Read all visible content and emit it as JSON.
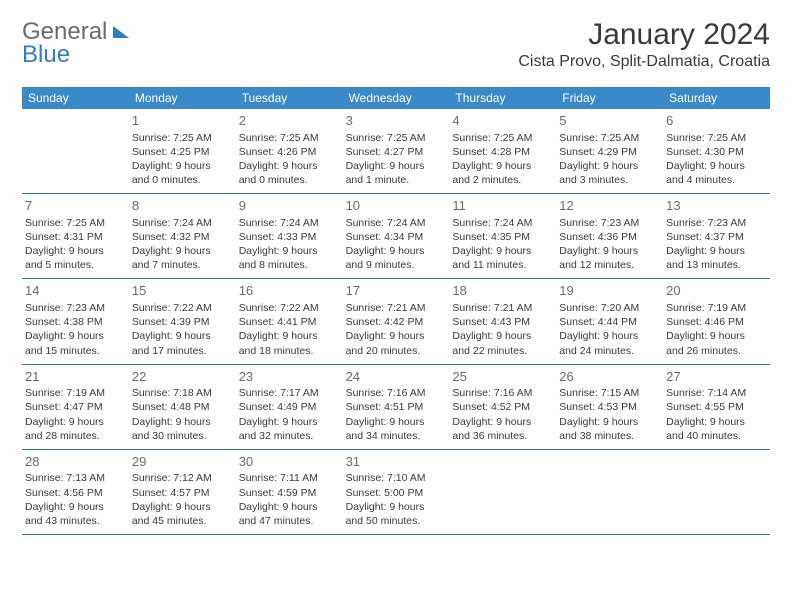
{
  "logo": {
    "gray": "General",
    "blue": "Blue"
  },
  "title": "January 2024",
  "location": "Cista Provo, Split-Dalmatia, Croatia",
  "header_bg": "#3a89c9",
  "divider_color": "#2f6fa3",
  "dow": [
    "Sunday",
    "Monday",
    "Tuesday",
    "Wednesday",
    "Thursday",
    "Friday",
    "Saturday"
  ],
  "weeks": [
    [
      {
        "n": "",
        "l1": "",
        "l2": "",
        "l3": "",
        "l4": ""
      },
      {
        "n": "1",
        "l1": "Sunrise: 7:25 AM",
        "l2": "Sunset: 4:25 PM",
        "l3": "Daylight: 9 hours",
        "l4": "and 0 minutes."
      },
      {
        "n": "2",
        "l1": "Sunrise: 7:25 AM",
        "l2": "Sunset: 4:26 PM",
        "l3": "Daylight: 9 hours",
        "l4": "and 0 minutes."
      },
      {
        "n": "3",
        "l1": "Sunrise: 7:25 AM",
        "l2": "Sunset: 4:27 PM",
        "l3": "Daylight: 9 hours",
        "l4": "and 1 minute."
      },
      {
        "n": "4",
        "l1": "Sunrise: 7:25 AM",
        "l2": "Sunset: 4:28 PM",
        "l3": "Daylight: 9 hours",
        "l4": "and 2 minutes."
      },
      {
        "n": "5",
        "l1": "Sunrise: 7:25 AM",
        "l2": "Sunset: 4:29 PM",
        "l3": "Daylight: 9 hours",
        "l4": "and 3 minutes."
      },
      {
        "n": "6",
        "l1": "Sunrise: 7:25 AM",
        "l2": "Sunset: 4:30 PM",
        "l3": "Daylight: 9 hours",
        "l4": "and 4 minutes."
      }
    ],
    [
      {
        "n": "7",
        "l1": "Sunrise: 7:25 AM",
        "l2": "Sunset: 4:31 PM",
        "l3": "Daylight: 9 hours",
        "l4": "and 5 minutes."
      },
      {
        "n": "8",
        "l1": "Sunrise: 7:24 AM",
        "l2": "Sunset: 4:32 PM",
        "l3": "Daylight: 9 hours",
        "l4": "and 7 minutes."
      },
      {
        "n": "9",
        "l1": "Sunrise: 7:24 AM",
        "l2": "Sunset: 4:33 PM",
        "l3": "Daylight: 9 hours",
        "l4": "and 8 minutes."
      },
      {
        "n": "10",
        "l1": "Sunrise: 7:24 AM",
        "l2": "Sunset: 4:34 PM",
        "l3": "Daylight: 9 hours",
        "l4": "and 9 minutes."
      },
      {
        "n": "11",
        "l1": "Sunrise: 7:24 AM",
        "l2": "Sunset: 4:35 PM",
        "l3": "Daylight: 9 hours",
        "l4": "and 11 minutes."
      },
      {
        "n": "12",
        "l1": "Sunrise: 7:23 AM",
        "l2": "Sunset: 4:36 PM",
        "l3": "Daylight: 9 hours",
        "l4": "and 12 minutes."
      },
      {
        "n": "13",
        "l1": "Sunrise: 7:23 AM",
        "l2": "Sunset: 4:37 PM",
        "l3": "Daylight: 9 hours",
        "l4": "and 13 minutes."
      }
    ],
    [
      {
        "n": "14",
        "l1": "Sunrise: 7:23 AM",
        "l2": "Sunset: 4:38 PM",
        "l3": "Daylight: 9 hours",
        "l4": "and 15 minutes."
      },
      {
        "n": "15",
        "l1": "Sunrise: 7:22 AM",
        "l2": "Sunset: 4:39 PM",
        "l3": "Daylight: 9 hours",
        "l4": "and 17 minutes."
      },
      {
        "n": "16",
        "l1": "Sunrise: 7:22 AM",
        "l2": "Sunset: 4:41 PM",
        "l3": "Daylight: 9 hours",
        "l4": "and 18 minutes."
      },
      {
        "n": "17",
        "l1": "Sunrise: 7:21 AM",
        "l2": "Sunset: 4:42 PM",
        "l3": "Daylight: 9 hours",
        "l4": "and 20 minutes."
      },
      {
        "n": "18",
        "l1": "Sunrise: 7:21 AM",
        "l2": "Sunset: 4:43 PM",
        "l3": "Daylight: 9 hours",
        "l4": "and 22 minutes."
      },
      {
        "n": "19",
        "l1": "Sunrise: 7:20 AM",
        "l2": "Sunset: 4:44 PM",
        "l3": "Daylight: 9 hours",
        "l4": "and 24 minutes."
      },
      {
        "n": "20",
        "l1": "Sunrise: 7:19 AM",
        "l2": "Sunset: 4:46 PM",
        "l3": "Daylight: 9 hours",
        "l4": "and 26 minutes."
      }
    ],
    [
      {
        "n": "21",
        "l1": "Sunrise: 7:19 AM",
        "l2": "Sunset: 4:47 PM",
        "l3": "Daylight: 9 hours",
        "l4": "and 28 minutes."
      },
      {
        "n": "22",
        "l1": "Sunrise: 7:18 AM",
        "l2": "Sunset: 4:48 PM",
        "l3": "Daylight: 9 hours",
        "l4": "and 30 minutes."
      },
      {
        "n": "23",
        "l1": "Sunrise: 7:17 AM",
        "l2": "Sunset: 4:49 PM",
        "l3": "Daylight: 9 hours",
        "l4": "and 32 minutes."
      },
      {
        "n": "24",
        "l1": "Sunrise: 7:16 AM",
        "l2": "Sunset: 4:51 PM",
        "l3": "Daylight: 9 hours",
        "l4": "and 34 minutes."
      },
      {
        "n": "25",
        "l1": "Sunrise: 7:16 AM",
        "l2": "Sunset: 4:52 PM",
        "l3": "Daylight: 9 hours",
        "l4": "and 36 minutes."
      },
      {
        "n": "26",
        "l1": "Sunrise: 7:15 AM",
        "l2": "Sunset: 4:53 PM",
        "l3": "Daylight: 9 hours",
        "l4": "and 38 minutes."
      },
      {
        "n": "27",
        "l1": "Sunrise: 7:14 AM",
        "l2": "Sunset: 4:55 PM",
        "l3": "Daylight: 9 hours",
        "l4": "and 40 minutes."
      }
    ],
    [
      {
        "n": "28",
        "l1": "Sunrise: 7:13 AM",
        "l2": "Sunset: 4:56 PM",
        "l3": "Daylight: 9 hours",
        "l4": "and 43 minutes."
      },
      {
        "n": "29",
        "l1": "Sunrise: 7:12 AM",
        "l2": "Sunset: 4:57 PM",
        "l3": "Daylight: 9 hours",
        "l4": "and 45 minutes."
      },
      {
        "n": "30",
        "l1": "Sunrise: 7:11 AM",
        "l2": "Sunset: 4:59 PM",
        "l3": "Daylight: 9 hours",
        "l4": "and 47 minutes."
      },
      {
        "n": "31",
        "l1": "Sunrise: 7:10 AM",
        "l2": "Sunset: 5:00 PM",
        "l3": "Daylight: 9 hours",
        "l4": "and 50 minutes."
      },
      {
        "n": "",
        "l1": "",
        "l2": "",
        "l3": "",
        "l4": ""
      },
      {
        "n": "",
        "l1": "",
        "l2": "",
        "l3": "",
        "l4": ""
      },
      {
        "n": "",
        "l1": "",
        "l2": "",
        "l3": "",
        "l4": ""
      }
    ]
  ]
}
